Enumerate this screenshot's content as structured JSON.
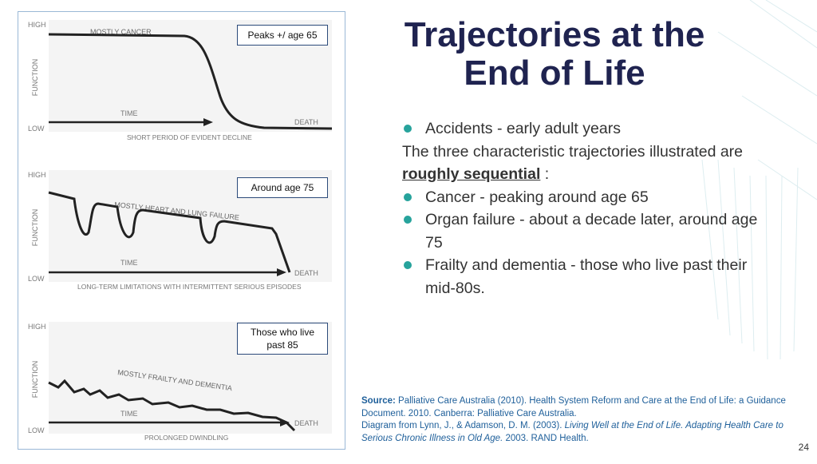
{
  "panels": [
    {
      "high": "HIGH",
      "function": "FUNCTION",
      "low": "LOW",
      "curve_label": "MOSTLY CANCER",
      "time": "TIME",
      "death": "DEATH",
      "caption": "SHORT PERIOD OF EVIDENT DECLINE",
      "callout": "Peaks +/ age 65"
    },
    {
      "high": "HIGH",
      "function": "FUNCTION",
      "low": "LOW",
      "curve_label": "MOSTLY HEART AND LUNG FAILURE",
      "time": "TIME",
      "death": "DEATH",
      "caption": "LONG-TERM LIMITATIONS WITH INTERMITTENT SERIOUS EPISODES",
      "callout": "Around age 75"
    },
    {
      "high": "HIGH",
      "function": "FUNCTION",
      "low": "LOW",
      "curve_label": "MOSTLY FRAILTY AND DEMENTIA",
      "time": "TIME",
      "death": "DEATH",
      "caption": "PROLONGED DWINDLING",
      "callout": "Those who live past 85"
    }
  ],
  "title": "Trajectories at the End of Life",
  "list_1": [
    "Accidents - early adult years"
  ],
  "paragraph": {
    "before": "The three characteristic trajectories illustrated are",
    "emphasis": "roughly sequential",
    "after": ":"
  },
  "list_2": [
    "Cancer - peaking around age 65",
    "Organ failure - about a decade later, around age 75",
    "Frailty and dementia - those who live past their mid-80s."
  ],
  "source": {
    "label": "Source:",
    "text": "Palliative Care Australia (2010). Health System Reform and Care at the End of Life: a Guidance Document.  2010. Canberra: Palliative Care Australia.",
    "diagram_from": "Diagram from Lynn, J., & Adamson, D. M. (2003).",
    "book": "Living Well at the End of Life. Adapting Health Care to Serious Chronic Illness in Old Age.",
    "publisher": "2003. RAND Health."
  },
  "page_number": "24"
}
